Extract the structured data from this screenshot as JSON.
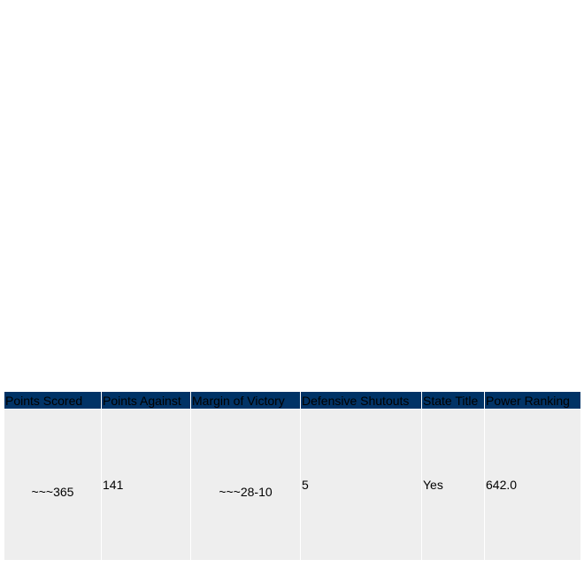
{
  "table": {
    "headers": [
      "Points Scored",
      "Points Against",
      "Margin of Victory",
      "Defensive Shutouts",
      "State Title",
      "Power Ranking"
    ],
    "rows": [
      [
        "~~~365",
        "141",
        "~~~28-10",
        "5",
        "Yes",
        "642.0"
      ]
    ]
  }
}
